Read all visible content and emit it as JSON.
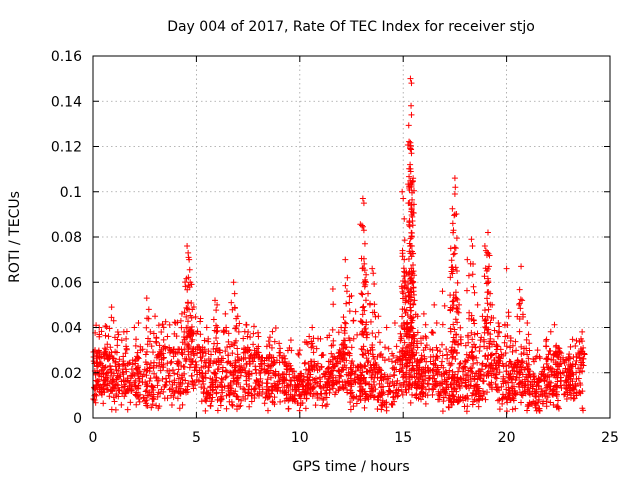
{
  "chart_data": {
    "type": "scatter",
    "title": "Day 004 of 2017, Rate Of TEC Index for receiver stjo",
    "xlabel": "GPS time / hours",
    "ylabel": "ROTI / TECUs",
    "xlim": [
      0,
      25
    ],
    "ylim": [
      0,
      0.16
    ],
    "xticks": [
      0,
      5,
      10,
      15,
      20,
      25
    ],
    "xtick_labels": [
      "0",
      "5",
      "10",
      "15",
      "20",
      "25"
    ],
    "yticks": [
      0,
      0.02,
      0.04,
      0.06,
      0.08,
      0.1,
      0.12,
      0.14,
      0.16
    ],
    "ytick_labels": [
      "0",
      "0.02",
      "0.04",
      "0.06",
      "0.08",
      "0.1",
      "0.12",
      "0.14",
      "0.16"
    ],
    "grid": true,
    "marker": "+",
    "color": "#ff0000",
    "series": [
      {
        "name": "ROTI",
        "points": [
          [
            0.1,
            0.03
          ],
          [
            0.15,
            0.041
          ],
          [
            0.3,
            0.04
          ],
          [
            0.5,
            0.028
          ],
          [
            0.9,
            0.049
          ],
          [
            1.0,
            0.043
          ],
          [
            1.2,
            0.038
          ],
          [
            1.6,
            0.035
          ],
          [
            2.0,
            0.04
          ],
          [
            2.2,
            0.042
          ],
          [
            2.6,
            0.053
          ],
          [
            2.7,
            0.048
          ],
          [
            3.0,
            0.045
          ],
          [
            3.3,
            0.038
          ],
          [
            3.6,
            0.036
          ],
          [
            4.0,
            0.042
          ],
          [
            4.3,
            0.046
          ],
          [
            4.55,
            0.076
          ],
          [
            4.6,
            0.073
          ],
          [
            4.62,
            0.071
          ],
          [
            4.65,
            0.07
          ],
          [
            4.7,
            0.06
          ],
          [
            4.8,
            0.048
          ],
          [
            5.2,
            0.044
          ],
          [
            5.5,
            0.04
          ],
          [
            5.9,
            0.052
          ],
          [
            6.0,
            0.05
          ],
          [
            6.4,
            0.046
          ],
          [
            6.8,
            0.06
          ],
          [
            6.85,
            0.055
          ],
          [
            7.0,
            0.045
          ],
          [
            7.5,
            0.038
          ],
          [
            8.0,
            0.036
          ],
          [
            8.5,
            0.034
          ],
          [
            9.0,
            0.033
          ],
          [
            9.5,
            0.031
          ],
          [
            10.0,
            0.03
          ],
          [
            10.6,
            0.04
          ],
          [
            11.0,
            0.035
          ],
          [
            11.6,
            0.057
          ],
          [
            12.0,
            0.04
          ],
          [
            12.2,
            0.07
          ],
          [
            12.3,
            0.062
          ],
          [
            12.5,
            0.054
          ],
          [
            12.7,
            0.047
          ],
          [
            13.05,
            0.097
          ],
          [
            13.1,
            0.095
          ],
          [
            13.1,
            0.083
          ],
          [
            13.15,
            0.077
          ],
          [
            13.2,
            0.06
          ],
          [
            13.3,
            0.055
          ],
          [
            13.5,
            0.066
          ],
          [
            13.55,
            0.064
          ],
          [
            13.8,
            0.045
          ],
          [
            14.2,
            0.04
          ],
          [
            14.6,
            0.042
          ],
          [
            14.95,
            0.1
          ],
          [
            15.0,
            0.097
          ],
          [
            15.05,
            0.088
          ],
          [
            15.05,
            0.07
          ],
          [
            15.1,
            0.06
          ],
          [
            15.15,
            0.052
          ],
          [
            15.25,
            0.095
          ],
          [
            15.3,
            0.087
          ],
          [
            15.35,
            0.15
          ],
          [
            15.4,
            0.148
          ],
          [
            15.38,
            0.138
          ],
          [
            15.4,
            0.134
          ],
          [
            15.35,
            0.119
          ],
          [
            15.4,
            0.117
          ],
          [
            15.42,
            0.076
          ],
          [
            15.45,
            0.064
          ],
          [
            15.5,
            0.056
          ],
          [
            15.55,
            0.052
          ],
          [
            15.7,
            0.045
          ],
          [
            16.0,
            0.046
          ],
          [
            16.5,
            0.05
          ],
          [
            16.9,
            0.056
          ],
          [
            17.3,
            0.075
          ],
          [
            17.4,
            0.086
          ],
          [
            17.5,
            0.106
          ],
          [
            17.52,
            0.102
          ],
          [
            17.5,
            0.099
          ],
          [
            17.6,
            0.065
          ],
          [
            17.7,
            0.05
          ],
          [
            18.1,
            0.07
          ],
          [
            18.3,
            0.079
          ],
          [
            18.35,
            0.076
          ],
          [
            18.4,
            0.058
          ],
          [
            18.6,
            0.05
          ],
          [
            18.95,
            0.076
          ],
          [
            19.0,
            0.074
          ],
          [
            19.05,
            0.072
          ],
          [
            19.1,
            0.082
          ],
          [
            19.15,
            0.067
          ],
          [
            19.2,
            0.055
          ],
          [
            19.3,
            0.05
          ],
          [
            19.6,
            0.042
          ],
          [
            20.0,
            0.066
          ],
          [
            20.1,
            0.045
          ],
          [
            20.6,
            0.05
          ],
          [
            20.7,
            0.067
          ],
          [
            20.75,
            0.052
          ],
          [
            21.0,
            0.042
          ],
          [
            21.5,
            0.03
          ],
          [
            22.0,
            0.026
          ],
          [
            22.4,
            0.032
          ],
          [
            22.5,
            0.031
          ],
          [
            23.0,
            0.027
          ],
          [
            23.6,
            0.035
          ],
          [
            23.65,
            0.034
          ],
          [
            23.7,
            0.031
          ]
        ],
        "band": {
          "x_range": [
            0.0,
            23.75
          ],
          "typical_min": 0.008,
          "typical_max": 0.026,
          "outlier_min": 0.003
        }
      }
    ]
  }
}
